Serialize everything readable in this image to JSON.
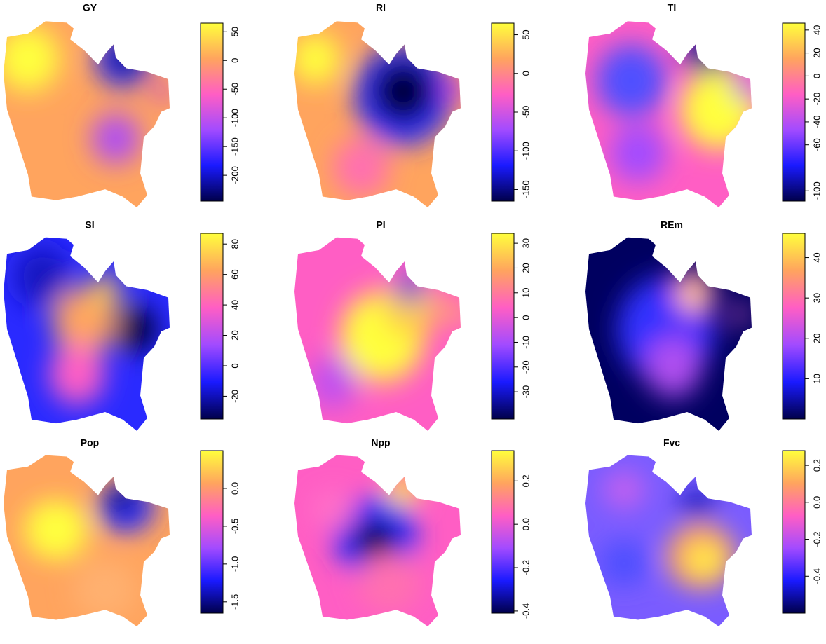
{
  "colormap": [
    "#00004a",
    "#1a1aff",
    "#a24bff",
    "#ff5ec4",
    "#ffa45e",
    "#ffff3c"
  ],
  "chart_data": [
    {
      "type": "raster",
      "title": "GY",
      "ylim": [
        -245,
        65
      ],
      "yticks": [
        50,
        0,
        -50,
        -100,
        -150,
        -200
      ]
    },
    {
      "type": "raster",
      "title": "RI",
      "ylim": [
        -165,
        65
      ],
      "yticks": [
        50,
        0,
        -50,
        -100,
        -150
      ]
    },
    {
      "type": "raster",
      "title": "TI",
      "ylim": [
        -109,
        46
      ],
      "yticks": [
        40,
        20,
        0,
        -20,
        -40,
        -60,
        -100
      ]
    },
    {
      "type": "raster",
      "title": "SI",
      "ylim": [
        -35,
        87
      ],
      "yticks": [
        80,
        60,
        40,
        20,
        0,
        -20
      ]
    },
    {
      "type": "raster",
      "title": "PI",
      "ylim": [
        -41,
        34
      ],
      "yticks": [
        30,
        20,
        10,
        0,
        -10,
        -20,
        -30
      ]
    },
    {
      "type": "raster",
      "title": "REm",
      "ylim": [
        0,
        46
      ],
      "yticks": [
        40,
        30,
        20,
        10
      ]
    },
    {
      "type": "raster",
      "title": "Pop",
      "ylim": [
        -1.65,
        0.5
      ],
      "yticks": [
        {
          "value": 0,
          "label": "0.0"
        },
        -0.5,
        {
          "value": -1,
          "label": "-1.0"
        },
        -1.5
      ]
    },
    {
      "type": "raster",
      "title": "Npp",
      "ylim": [
        -0.41,
        0.34
      ],
      "yticks": [
        0.2,
        {
          "value": 0,
          "label": "0.0"
        },
        -0.2,
        -0.4
      ]
    },
    {
      "type": "raster",
      "title": "Fvc",
      "ylim": [
        -0.6,
        0.28
      ],
      "yticks": [
        0.2,
        {
          "value": 0,
          "label": "0.0"
        },
        -0.2,
        -0.4
      ]
    }
  ]
}
